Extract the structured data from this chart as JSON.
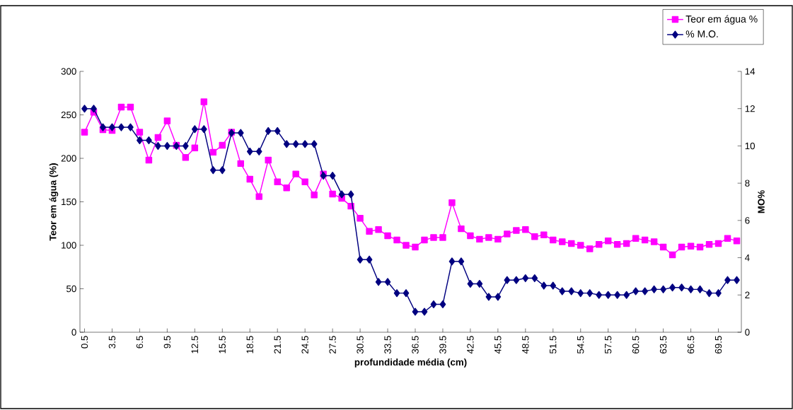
{
  "chart_data": {
    "type": "line",
    "xlabel": "profundidade média (cm)",
    "ylabel": "Teor em água (%)",
    "y2label": "MO%",
    "x": [
      0.5,
      1.5,
      2.5,
      3.5,
      4.5,
      5.5,
      6.5,
      7.5,
      8.5,
      9.5,
      10.5,
      11.5,
      12.5,
      13.5,
      14.5,
      15.5,
      16.5,
      17.5,
      18.5,
      19.5,
      20.5,
      21.5,
      22.5,
      23.5,
      24.5,
      25.5,
      26.5,
      27.5,
      28.5,
      29.5,
      30.5,
      31.5,
      32.5,
      33.5,
      34.5,
      35.5,
      36.5,
      37.5,
      38.5,
      39.5,
      40.5,
      41.5,
      42.5,
      43.5,
      44.5,
      45.5,
      46.5,
      47.5,
      48.5,
      49.5,
      50.5,
      51.5,
      52.5,
      53.5,
      54.5,
      55.5,
      56.5,
      57.5,
      58.5,
      59.5,
      60.5,
      61.5,
      62.5,
      63.5,
      64.5,
      65.5,
      66.5,
      67.5,
      68.5,
      69.5,
      70.5,
      71.5
    ],
    "series": [
      {
        "name": "Teor em água %",
        "color": "#ff00ff",
        "marker": "square",
        "axis": "y",
        "values": [
          230,
          253,
          233,
          232,
          259,
          259,
          230,
          198,
          224,
          243,
          215,
          201,
          212,
          265,
          207,
          215,
          230,
          194,
          176,
          156,
          198,
          173,
          166,
          182,
          173,
          158,
          182,
          159,
          154,
          145,
          131,
          116,
          118,
          111,
          106,
          100,
          98,
          106,
          109,
          109,
          149,
          119,
          111,
          107,
          109,
          107,
          113,
          117,
          118,
          110,
          112,
          106,
          104,
          102,
          100,
          96,
          101,
          105,
          101,
          102,
          108,
          106,
          104,
          98,
          89,
          98,
          99,
          98,
          101,
          102,
          108,
          105
        ]
      },
      {
        "name": "% M.O.",
        "color": "#000080",
        "marker": "diamond",
        "axis": "y2",
        "values": [
          12.0,
          12.0,
          11.0,
          11.0,
          11.0,
          11.0,
          10.3,
          10.3,
          10.0,
          10.0,
          10.0,
          10.0,
          10.9,
          10.9,
          8.7,
          8.7,
          10.7,
          10.7,
          9.7,
          9.7,
          10.8,
          10.8,
          10.1,
          10.1,
          10.1,
          10.1,
          8.4,
          8.4,
          7.4,
          7.4,
          3.9,
          3.9,
          2.7,
          2.7,
          2.1,
          2.1,
          1.1,
          1.1,
          1.5,
          1.5,
          3.8,
          3.8,
          2.6,
          2.6,
          1.9,
          1.9,
          2.8,
          2.8,
          2.9,
          2.9,
          2.5,
          2.5,
          2.2,
          2.2,
          2.1,
          2.1,
          2.0,
          2.0,
          2.0,
          2.0,
          2.2,
          2.2,
          2.3,
          2.3,
          2.4,
          2.4,
          2.3,
          2.3,
          2.1,
          2.1,
          2.8,
          2.8
        ]
      }
    ],
    "xlim": [
      0,
      72
    ],
    "xticks": [
      0.5,
      3.5,
      6.5,
      9.5,
      12.5,
      15.5,
      18.5,
      21.5,
      24.5,
      27.5,
      30.5,
      33.5,
      36.5,
      39.5,
      42.5,
      45.5,
      48.5,
      51.5,
      54.5,
      57.5,
      60.5,
      63.5,
      66.5,
      69.5
    ],
    "ylim": [
      0,
      300
    ],
    "yticks": [
      0,
      50,
      100,
      150,
      200,
      250,
      300
    ],
    "y2lim": [
      0,
      14
    ],
    "y2ticks": [
      0,
      2,
      4,
      6,
      8,
      10,
      12,
      14
    ],
    "line_style": "solid",
    "grid": false,
    "legend": "top right"
  }
}
